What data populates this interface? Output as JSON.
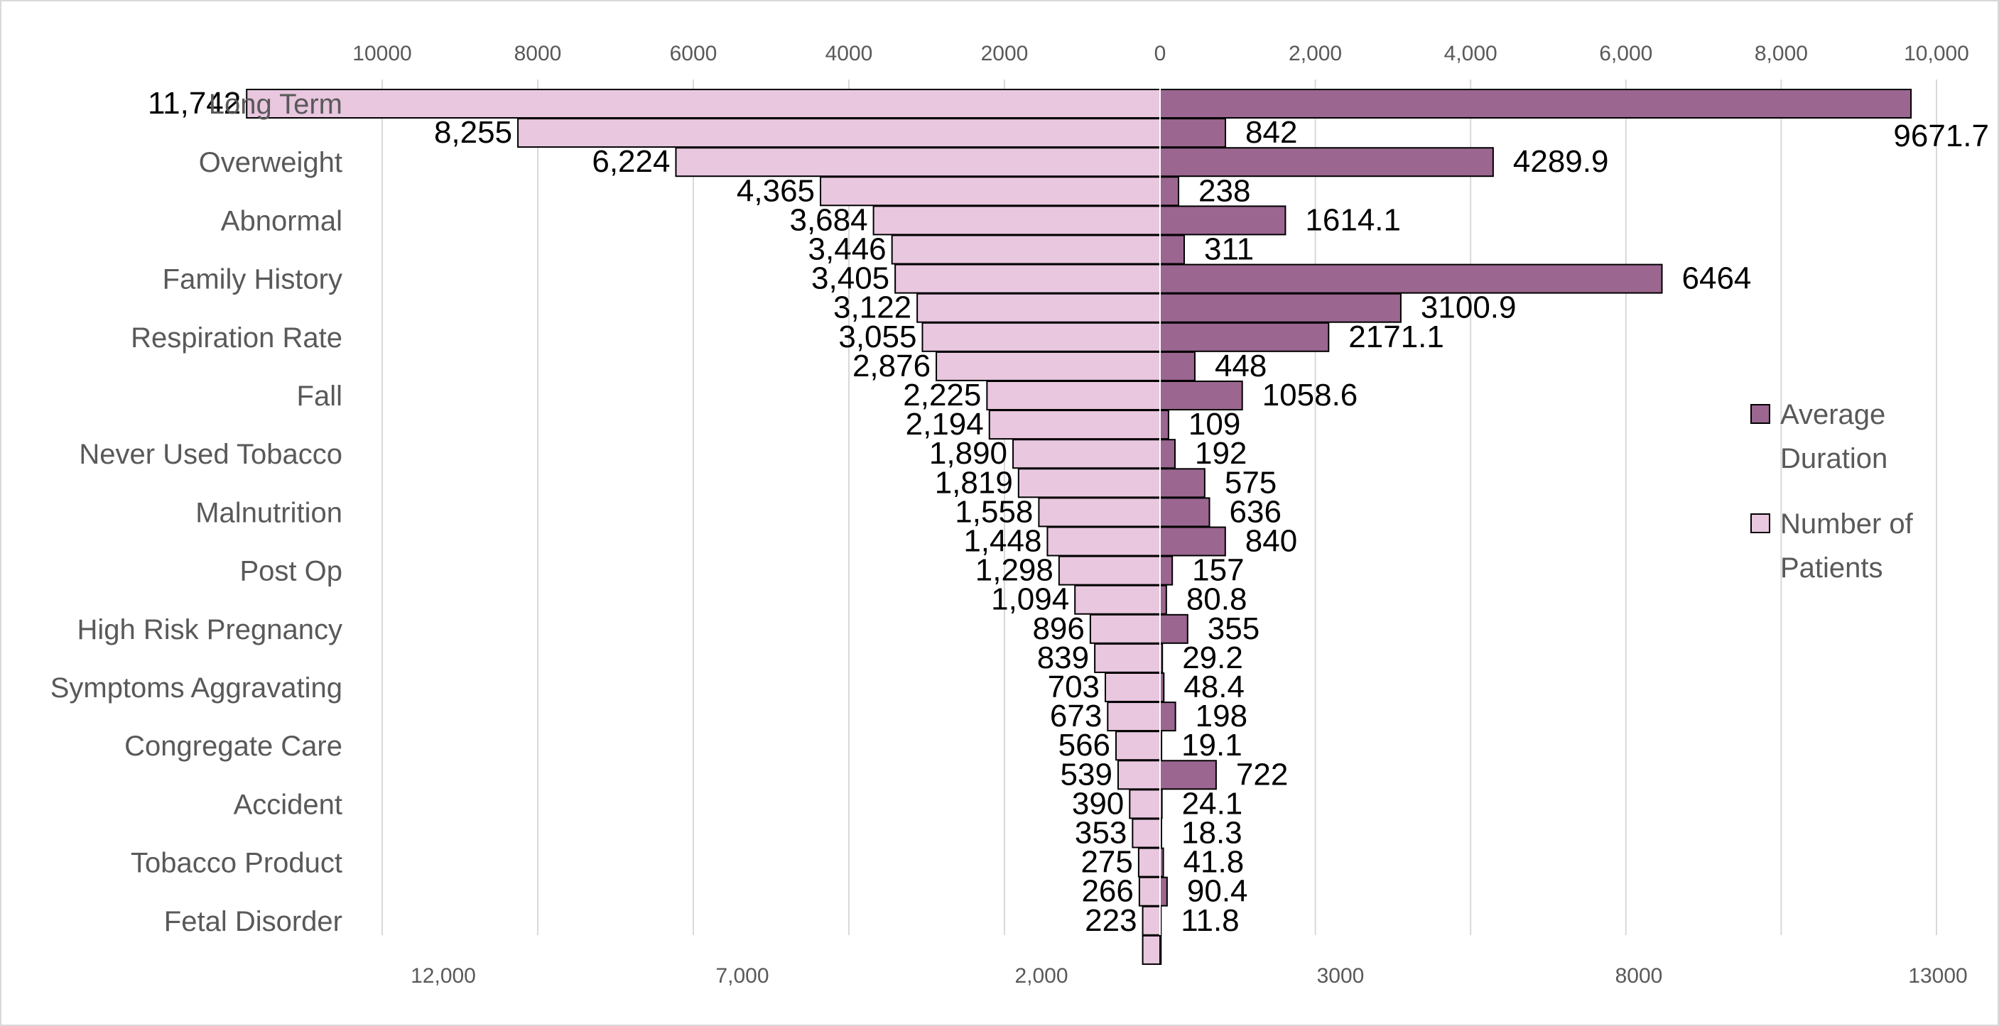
{
  "chart_data": {
    "type": "bar",
    "orientation": "horizontal",
    "layout": "butterfly",
    "categories": [
      "Long Term",
      "",
      "Overweight",
      "",
      "Abnormal",
      "",
      "Family History",
      "",
      "Respiration Rate",
      "",
      "Fall",
      "",
      "Never Used Tobacco",
      "",
      "Malnutrition",
      "",
      "Post Op",
      "",
      "High Risk Pregnancy",
      "",
      "Symptoms Aggravating",
      "",
      "Congregate Care",
      "",
      "Accident",
      "",
      "Tobacco Product",
      "",
      "Fetal Disorder",
      ""
    ],
    "series": [
      {
        "name": "Number of Patients",
        "side": "left",
        "values": [
          11742,
          8255,
          6224,
          4365,
          3684,
          3446,
          3405,
          3122,
          3055,
          2876,
          2225,
          2194,
          1890,
          1819,
          1558,
          1448,
          1298,
          1094,
          896,
          839,
          703,
          673,
          566,
          539,
          390,
          353,
          275,
          266,
          223,
          223
        ],
        "labels": [
          "11,742",
          "8,255",
          "6,224",
          "4,365",
          "3,684",
          "3,446",
          "3,405",
          "3,122",
          "3,055",
          "2,876",
          "2,225",
          "2,194",
          "1,890",
          "1,819",
          "1,558",
          "1,448",
          "1,298",
          "1,094",
          "896",
          "839",
          "703",
          "673",
          "566",
          "539",
          "390",
          "353",
          "275",
          "266",
          "223",
          ""
        ],
        "color": "#E9C7DF"
      },
      {
        "name": "Average Duration",
        "side": "right",
        "values": [
          9671.7,
          842,
          4289.9,
          238,
          1614.1,
          311,
          6464,
          3100.9,
          2171.1,
          448,
          1058.6,
          109,
          192,
          575,
          636,
          840,
          157,
          80.8,
          355,
          29.2,
          48.4,
          198,
          19.1,
          722,
          24.1,
          18.3,
          41.8,
          90.4,
          11.8,
          11.8
        ],
        "labels": [
          "9671.7",
          "842",
          "4289.9",
          "238",
          "1614.1",
          "311",
          "6464",
          "3100.9",
          "2171.1",
          "448",
          "1058.6",
          "109",
          "192",
          "575",
          "636",
          "840",
          "157",
          "80.8",
          "355",
          "29.2",
          "48.4",
          "198",
          "19.1",
          "722",
          "24.1",
          "18.3",
          "41.8",
          "90.4",
          "11.8",
          ""
        ],
        "color": "#9B668F"
      }
    ],
    "top_axis_left": {
      "ticks": [
        "10000",
        "8000",
        "6000",
        "4000",
        "2000",
        "0"
      ]
    },
    "top_axis_right": {
      "ticks": [
        "2,000",
        "4,000",
        "6,000",
        "8,000",
        "10,000"
      ]
    },
    "bottom_axis_left": {
      "ticks": [
        "12,000",
        "7,000",
        "2,000"
      ]
    },
    "bottom_axis_right": {
      "ticks": [
        "3000",
        "8000",
        "13000"
      ]
    },
    "left_range": [
      0,
      10000
    ],
    "right_range": [
      0,
      10000
    ],
    "grid": true,
    "legend": {
      "position": "right",
      "entries": [
        {
          "lines": [
            "Average",
            "Duration"
          ],
          "color": "#9B668F"
        },
        {
          "lines": [
            "Number of",
            "Patients"
          ],
          "color": "#E9C7DF"
        }
      ]
    },
    "title": "",
    "xlabel": "",
    "ylabel": ""
  }
}
